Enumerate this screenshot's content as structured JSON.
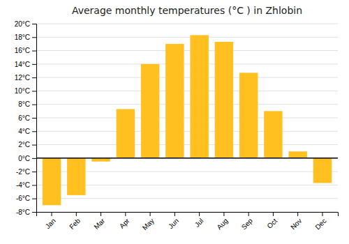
{
  "chart_data": {
    "type": "bar",
    "title": "Average monthly temperatures (°C ) in Zhlobin",
    "categories": [
      "Jan",
      "Feb",
      "Mar",
      "Apr",
      "May",
      "Jun",
      "Jul",
      "Aug",
      "Sep",
      "Oct",
      "Nov",
      "Dec"
    ],
    "values": [
      -7.0,
      -5.5,
      -0.5,
      7.3,
      14.0,
      17.0,
      18.3,
      17.3,
      12.7,
      7.0,
      1.0,
      -3.7
    ],
    "color": "#FFC020",
    "ylim": [
      -8,
      20
    ],
    "yticks": [
      {
        "value": -8,
        "label": "-8°C"
      },
      {
        "value": -6,
        "label": "-6°C"
      },
      {
        "value": -4,
        "label": "-4°C"
      },
      {
        "value": -2,
        "label": "-2°C"
      },
      {
        "value": 0,
        "label": "0°C"
      },
      {
        "value": 2,
        "label": "2°C"
      },
      {
        "value": 4,
        "label": "4°C"
      },
      {
        "value": 6,
        "label": "6°C"
      },
      {
        "value": 8,
        "label": "8°C"
      },
      {
        "value": 10,
        "label": "10°C"
      },
      {
        "value": 12,
        "label": "12°C"
      },
      {
        "value": 14,
        "label": "14°C"
      },
      {
        "value": 16,
        "label": "16°C"
      },
      {
        "value": 18,
        "label": "18°C"
      },
      {
        "value": 20,
        "label": "20°C"
      }
    ],
    "grid": true
  }
}
